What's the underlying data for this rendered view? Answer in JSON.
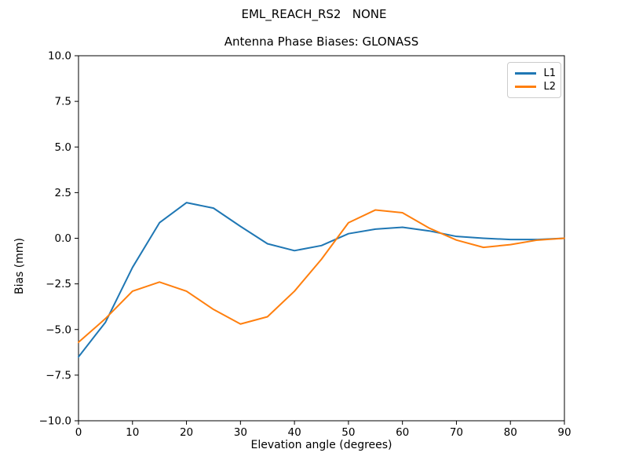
{
  "chart_data": {
    "type": "line",
    "suptitle": "EML_REACH_RS2   NONE",
    "title": "Antenna Phase Biases: GLONASS",
    "xlabel": "Elevation angle (degrees)",
    "ylabel": "Bias (mm)",
    "xlim": [
      0,
      90
    ],
    "ylim": [
      -10,
      10
    ],
    "grid": false,
    "x": [
      0,
      5,
      10,
      15,
      20,
      25,
      30,
      35,
      40,
      45,
      50,
      55,
      60,
      65,
      70,
      75,
      80,
      85,
      90
    ],
    "series": [
      {
        "name": "L1",
        "color": "#1f77b4",
        "values": [
          -6.5,
          -4.6,
          -1.6,
          0.85,
          1.95,
          1.65,
          0.65,
          -0.3,
          -0.68,
          -0.4,
          0.25,
          0.5,
          0.6,
          0.4,
          0.1,
          0.0,
          -0.07,
          -0.07,
          0.0
        ]
      },
      {
        "name": "L2",
        "color": "#ff7f0e",
        "values": [
          -5.7,
          -4.4,
          -2.9,
          -2.4,
          -2.9,
          -3.9,
          -4.7,
          -4.3,
          -2.9,
          -1.15,
          0.85,
          1.55,
          1.4,
          0.55,
          -0.1,
          -0.5,
          -0.35,
          -0.1,
          0.0
        ]
      }
    ],
    "x_ticks": {
      "values": [
        0,
        10,
        20,
        30,
        40,
        50,
        60,
        70,
        80,
        90
      ],
      "labels": [
        "0",
        "10",
        "20",
        "30",
        "40",
        "50",
        "60",
        "70",
        "80",
        "90"
      ]
    },
    "y_ticks": {
      "values": [
        10.0,
        7.5,
        5.0,
        2.5,
        0.0,
        -2.5,
        -5.0,
        -7.5,
        -10.0
      ],
      "labels": [
        "10.0",
        "7.5",
        "5.0",
        "2.5",
        "0.0",
        "−2.5",
        "−5.0",
        "−7.5",
        "−10.0"
      ]
    },
    "legend": {
      "position": "upper right",
      "entries": [
        "L1",
        "L2"
      ]
    }
  }
}
